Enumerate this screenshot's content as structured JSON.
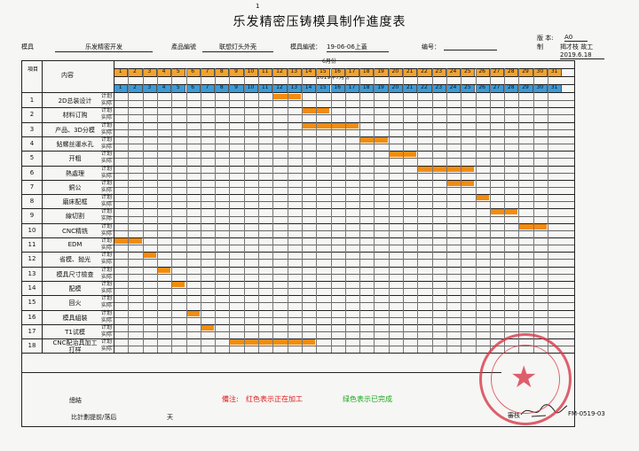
{
  "page_number": "1",
  "title": "乐发精密压铸模具制作進度表",
  "header": {
    "mold_label": "模具",
    "mold_value": "乐发精密开发",
    "product_label": "產品編號",
    "product_value": "联想灯头外壳",
    "mold_no_label": "模具編號：",
    "mold_no_value": "19-06-06上蓋",
    "no_label": "编号：",
    "no_value": "",
    "version_label": "版 本:",
    "version_value": "A0",
    "maker_label": "制",
    "maker_value": "揭才枝 故工",
    "date_value": "2019.6.18"
  },
  "table": {
    "col_item": "項目",
    "col_content": "内容",
    "month_top": "6月份",
    "month_bottom": "2019年7月份",
    "plan_label": "计划",
    "actual_label": "实际",
    "days_top": [
      "1",
      "2",
      "3",
      "4",
      "5",
      "6",
      "7",
      "8",
      "9",
      "10",
      "11",
      "12",
      "13",
      "14",
      "15",
      "16",
      "17",
      "18",
      "19",
      "20",
      "21",
      "22",
      "23",
      "24",
      "25",
      "26",
      "27",
      "28",
      "29",
      "30",
      "31"
    ],
    "days_bottom": [
      "1",
      "2",
      "3",
      "4",
      "5",
      "6",
      "7",
      "8",
      "9",
      "10",
      "11",
      "12",
      "13",
      "14",
      "15",
      "16",
      "17",
      "18",
      "19",
      "20",
      "21",
      "22",
      "23",
      "24",
      "25",
      "26",
      "27",
      "28",
      "29",
      "30",
      "31"
    ],
    "rows": [
      {
        "no": "1",
        "task": "2D总装设计",
        "bars": [
          [
            12,
            13
          ]
        ]
      },
      {
        "no": "2",
        "task": "材料订购",
        "bars": [
          [
            14,
            15
          ]
        ]
      },
      {
        "no": "3",
        "task": "产品、3D分模",
        "bars": [
          [
            14,
            17
          ]
        ]
      },
      {
        "no": "4",
        "task": "鉆螺丝運水孔",
        "bars": [
          [
            18,
            19
          ]
        ]
      },
      {
        "no": "5",
        "task": "开粗",
        "bars": [
          [
            20,
            21
          ]
        ]
      },
      {
        "no": "6",
        "task": "熱處理",
        "bars": [
          [
            22,
            25
          ]
        ]
      },
      {
        "no": "7",
        "task": "銅公",
        "bars": [
          [
            24,
            25
          ]
        ]
      },
      {
        "no": "8",
        "task": "磨床配框",
        "bars": [
          [
            26,
            26
          ]
        ]
      },
      {
        "no": "9",
        "task": "線切割",
        "bars": [
          [
            27,
            28
          ]
        ]
      },
      {
        "no": "10",
        "task": "CNC精铣",
        "bars": [
          [
            29,
            30
          ]
        ]
      },
      {
        "no": "11",
        "task": "EDM",
        "bars": [
          [
            1,
            2
          ]
        ]
      },
      {
        "no": "12",
        "task": "省模、抛光",
        "bars": [
          [
            3,
            3
          ]
        ]
      },
      {
        "no": "13",
        "task": "模具尺寸檢查",
        "bars": [
          [
            4,
            4
          ]
        ]
      },
      {
        "no": "14",
        "task": "配模",
        "bars": [
          [
            5,
            5
          ]
        ]
      },
      {
        "no": "15",
        "task": "回火",
        "bars": []
      },
      {
        "no": "16",
        "task": "模具組裝",
        "bars": [
          [
            6,
            6
          ]
        ]
      },
      {
        "no": "17",
        "task": "T1试模",
        "bars": [
          [
            7,
            7
          ]
        ]
      },
      {
        "no": "18",
        "task": "CNC配治具加工",
        "task2": "打样",
        "bars": [
          [
            9,
            14
          ]
        ]
      }
    ]
  },
  "footer": {
    "summary_label": "總結",
    "delay_label": "比計劃提前/落后",
    "delay_unit": "天",
    "note_label": "備注:",
    "note_red": "红色表示正在加工",
    "note_green": "绿色表示已完成",
    "review_label": "審核",
    "form_no": "FM-0519-03"
  },
  "colors": {
    "bar": "#f28c10",
    "header_orange": "#f2a32e",
    "header_blue": "#3b9bd8",
    "note_red": "#e11b1b",
    "note_green": "#1aa61a",
    "stamp": "#d83a4a"
  }
}
